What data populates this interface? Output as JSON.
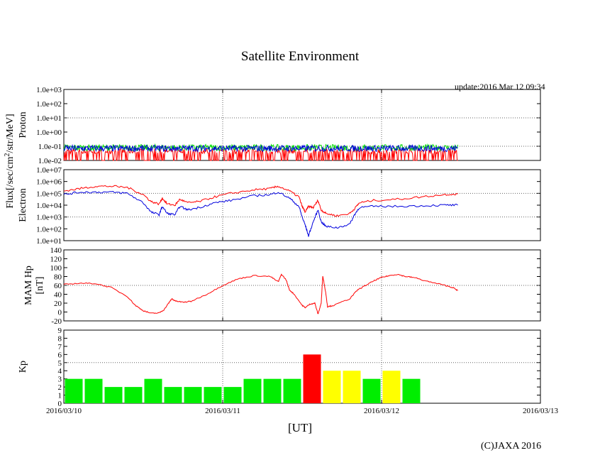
{
  "title": "Satellite Environment",
  "update": "update:2016 Mar 12 09:34",
  "x_unit_label": "[UT]",
  "copyright": "(C)JAXA 2016",
  "shared_ylabel": "Flux[/sec/cm",
  "shared_ylabel_sup": "2",
  "shared_ylabel_tail": "/str/MeV]",
  "colors": {
    "red": "#ff0000",
    "green": "#00dd00",
    "blue": "#0000dd",
    "kp_green": "#00ee00",
    "kp_yellow": "#ffff00",
    "kp_red": "#ff0000"
  },
  "x_ticks": [
    "2016/03/10",
    "2016/03/11",
    "2016/03/12",
    "2016/03/13"
  ],
  "chart_data": [
    {
      "type": "line",
      "ylabel": "Proton",
      "yscale": "log",
      "ylim": [
        0.01,
        1000
      ],
      "yticks": [
        "1.0e-02",
        "1.0e-01",
        "1.0e+00",
        "1.0e+01",
        "1.0e+02",
        "1.0e+03"
      ],
      "xlim_days": [
        0,
        3
      ],
      "grid": true,
      "series": [
        {
          "color": "#ff0000",
          "style": "spiky",
          "base_log": -1.35,
          "x_end": 2.48
        },
        {
          "color": "#00dd00",
          "style": "noisy",
          "base_log": -1.1,
          "x_end": 2.48
        },
        {
          "color": "#0000dd",
          "style": "noisy",
          "base_log": -1.15,
          "x_end": 2.48
        }
      ]
    },
    {
      "type": "line",
      "ylabel": "Electron",
      "yscale": "log",
      "ylim": [
        10,
        10000000
      ],
      "yticks": [
        "1.0e+01",
        "1.0e+02",
        "1.0e+03",
        "1.0e+04",
        "1.0e+05",
        "1.0e+06",
        "1.0e+07"
      ],
      "xlim_days": [
        0,
        3
      ],
      "grid": true,
      "series": [
        {
          "color": "#ff0000",
          "points": [
            [
              0,
              5.2
            ],
            [
              0.1,
              5.4
            ],
            [
              0.2,
              5.6
            ],
            [
              0.3,
              5.6
            ],
            [
              0.4,
              5.5
            ],
            [
              0.5,
              4.9
            ],
            [
              0.55,
              4.3
            ],
            [
              0.6,
              4.1
            ],
            [
              0.62,
              4.6
            ],
            [
              0.65,
              4.1
            ],
            [
              0.7,
              4.0
            ],
            [
              0.73,
              4.5
            ],
            [
              0.78,
              4.2
            ],
            [
              0.85,
              4.3
            ],
            [
              0.95,
              4.7
            ],
            [
              1.05,
              5.0
            ],
            [
              1.2,
              5.3
            ],
            [
              1.3,
              5.4
            ],
            [
              1.35,
              5.6
            ],
            [
              1.42,
              5.2
            ],
            [
              1.48,
              4.7
            ],
            [
              1.5,
              3.9
            ],
            [
              1.52,
              3.4
            ],
            [
              1.54,
              3.9
            ],
            [
              1.57,
              3.8
            ],
            [
              1.6,
              4.4
            ],
            [
              1.62,
              3.6
            ],
            [
              1.65,
              3.3
            ],
            [
              1.72,
              3.1
            ],
            [
              1.8,
              3.3
            ],
            [
              1.83,
              3.7
            ],
            [
              1.86,
              4.2
            ],
            [
              1.95,
              4.4
            ],
            [
              2.1,
              4.5
            ],
            [
              2.25,
              4.7
            ],
            [
              2.4,
              4.9
            ],
            [
              2.48,
              4.95
            ]
          ]
        },
        {
          "color": "#0000dd",
          "points": [
            [
              0,
              4.9
            ],
            [
              0.1,
              5.1
            ],
            [
              0.2,
              5.1
            ],
            [
              0.3,
              5.1
            ],
            [
              0.4,
              5.0
            ],
            [
              0.5,
              4.2
            ],
            [
              0.55,
              3.4
            ],
            [
              0.6,
              3.2
            ],
            [
              0.62,
              3.9
            ],
            [
              0.65,
              3.3
            ],
            [
              0.7,
              3.2
            ],
            [
              0.73,
              3.9
            ],
            [
              0.78,
              3.6
            ],
            [
              0.85,
              3.8
            ],
            [
              0.95,
              4.2
            ],
            [
              1.05,
              4.4
            ],
            [
              1.2,
              4.8
            ],
            [
              1.3,
              4.9
            ],
            [
              1.35,
              5.1
            ],
            [
              1.42,
              4.6
            ],
            [
              1.48,
              3.9
            ],
            [
              1.5,
              3.0
            ],
            [
              1.52,
              2.3
            ],
            [
              1.54,
              1.4
            ],
            [
              1.57,
              2.6
            ],
            [
              1.6,
              3.6
            ],
            [
              1.62,
              2.6
            ],
            [
              1.65,
              2.2
            ],
            [
              1.72,
              2.1
            ],
            [
              1.8,
              2.4
            ],
            [
              1.83,
              3.2
            ],
            [
              1.86,
              3.8
            ],
            [
              1.95,
              3.9
            ],
            [
              2.1,
              3.9
            ],
            [
              2.25,
              3.95
            ],
            [
              2.4,
              4.0
            ],
            [
              2.48,
              4.0
            ]
          ]
        }
      ]
    },
    {
      "type": "line",
      "ylabel": "MAM Hp",
      "ylabel2": "[nT]",
      "yscale": "linear",
      "ylim": [
        -20,
        140
      ],
      "yticks": [
        "-20",
        "0",
        "20",
        "40",
        "60",
        "80",
        "100",
        "120",
        "140"
      ],
      "xlim_days": [
        0,
        3
      ],
      "grid": true,
      "series": [
        {
          "color": "#ff0000",
          "points": [
            [
              0,
              62
            ],
            [
              0.1,
              65
            ],
            [
              0.2,
              64
            ],
            [
              0.3,
              55
            ],
            [
              0.4,
              35
            ],
            [
              0.45,
              15
            ],
            [
              0.5,
              3
            ],
            [
              0.55,
              -3
            ],
            [
              0.6,
              -2
            ],
            [
              0.63,
              5
            ],
            [
              0.66,
              20
            ],
            [
              0.68,
              30
            ],
            [
              0.7,
              25
            ],
            [
              0.75,
              22
            ],
            [
              0.8,
              24
            ],
            [
              0.9,
              40
            ],
            [
              1.0,
              60
            ],
            [
              1.1,
              75
            ],
            [
              1.2,
              82
            ],
            [
              1.3,
              80
            ],
            [
              1.35,
              68
            ],
            [
              1.37,
              85
            ],
            [
              1.4,
              72
            ],
            [
              1.42,
              50
            ],
            [
              1.45,
              40
            ],
            [
              1.5,
              15
            ],
            [
              1.52,
              10
            ],
            [
              1.55,
              18
            ],
            [
              1.58,
              20
            ],
            [
              1.6,
              -5
            ],
            [
              1.62,
              20
            ],
            [
              1.63,
              82
            ],
            [
              1.65,
              40
            ],
            [
              1.66,
              12
            ],
            [
              1.7,
              15
            ],
            [
              1.8,
              30
            ],
            [
              1.85,
              50
            ],
            [
              1.9,
              60
            ],
            [
              1.95,
              70
            ],
            [
              2.0,
              78
            ],
            [
              2.05,
              82
            ],
            [
              2.1,
              85
            ],
            [
              2.15,
              80
            ],
            [
              2.2,
              78
            ],
            [
              2.3,
              68
            ],
            [
              2.4,
              60
            ],
            [
              2.45,
              55
            ],
            [
              2.48,
              48
            ]
          ]
        }
      ]
    },
    {
      "type": "bar",
      "ylabel": "Kp",
      "ylim": [
        0,
        9
      ],
      "yticks": [
        "0",
        "1",
        "2",
        "3",
        "4",
        "5",
        "6",
        "7",
        "8",
        "9"
      ],
      "xlim_days": [
        0,
        3
      ],
      "grid": true,
      "values": [
        3,
        3,
        2,
        2,
        3,
        2,
        2,
        2,
        2,
        3,
        3,
        3,
        6,
        4,
        4,
        3,
        4,
        3
      ],
      "bar_colors": [
        "green",
        "green",
        "green",
        "green",
        "green",
        "green",
        "green",
        "green",
        "green",
        "green",
        "green",
        "green",
        "red",
        "yellow",
        "yellow",
        "green",
        "yellow",
        "green"
      ]
    }
  ]
}
